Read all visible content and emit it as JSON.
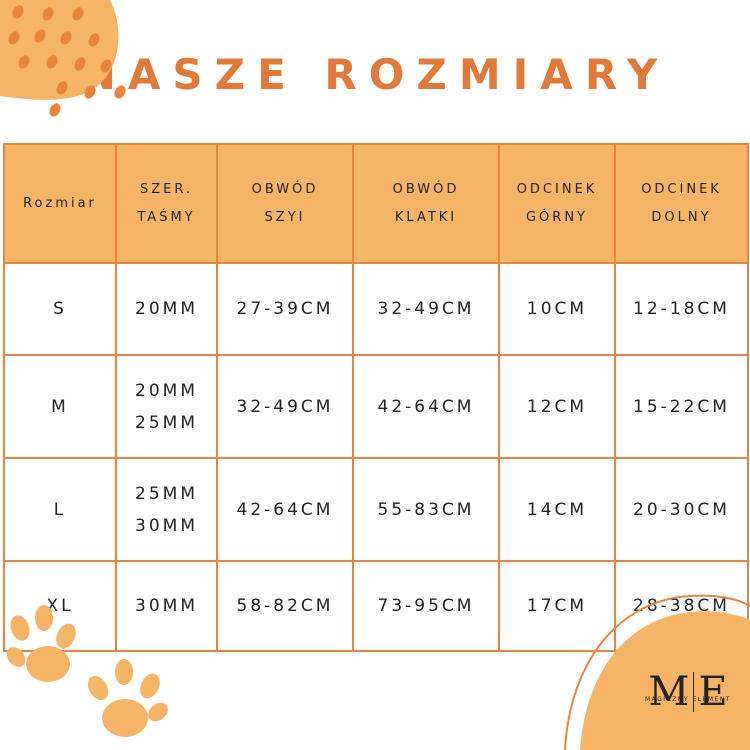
{
  "title": "NASZE ROZMIARY",
  "table": {
    "header": [
      [
        "Rozmiar"
      ],
      [
        "SZER.",
        "TAŚMY"
      ],
      [
        "OBWÓD",
        "SZYI"
      ],
      [
        "OBWÓD",
        "KLATKI"
      ],
      [
        "ODCINEK",
        "GÓRNY"
      ],
      [
        "ODCINEK",
        "DOLNY"
      ]
    ],
    "rows": [
      [
        [
          "S"
        ],
        [
          "20MM"
        ],
        [
          "27-39CM"
        ],
        [
          "32-49CM"
        ],
        [
          "10CM"
        ],
        [
          "12-18CM"
        ]
      ],
      [
        [
          "M"
        ],
        [
          "20MM",
          "25MM"
        ],
        [
          "32-49CM"
        ],
        [
          "42-64CM"
        ],
        [
          "12CM"
        ],
        [
          "15-22CM"
        ]
      ],
      [
        [
          "L"
        ],
        [
          "25MM",
          "30MM"
        ],
        [
          "42-64CM"
        ],
        [
          "55-83CM"
        ],
        [
          "14CM"
        ],
        [
          "20-30CM"
        ]
      ],
      [
        [
          "XL"
        ],
        [
          "30MM"
        ],
        [
          "58-82CM"
        ],
        [
          "73-95CM"
        ],
        [
          "17CM"
        ],
        [
          "28-38CM"
        ]
      ]
    ]
  },
  "logo": {
    "left": "M",
    "right": "E",
    "name": "MAGICZNY ELEMENT"
  }
}
